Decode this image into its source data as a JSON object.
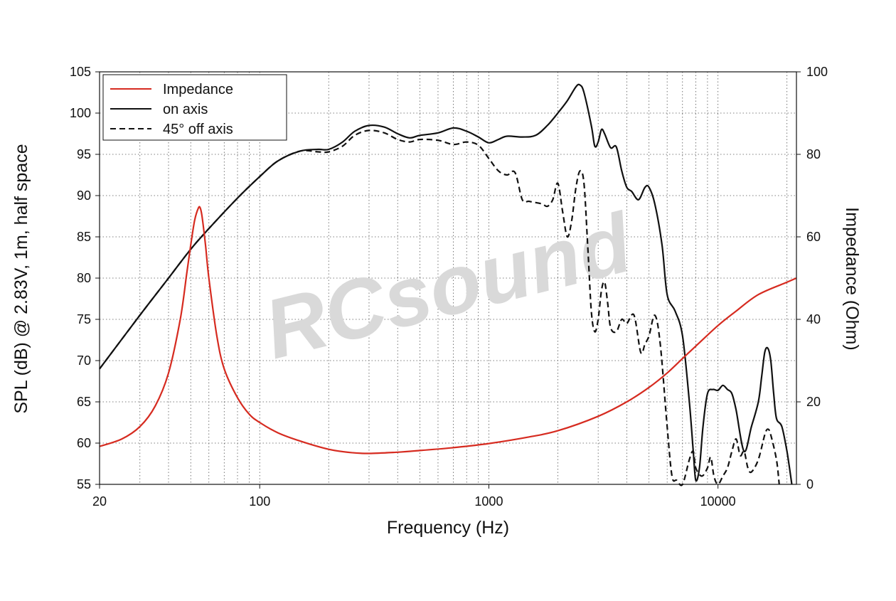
{
  "chart_data": {
    "type": "line",
    "xlabel": "Frequency (Hz)",
    "ylabel": "SPL (dB) @ 2.83V, 1m, half space",
    "y2label": "Impedance (Ohm)",
    "x_scale": "log",
    "xlim": [
      20,
      22000
    ],
    "ylim": [
      55,
      105
    ],
    "y2lim": [
      0,
      100
    ],
    "x_ticks": [
      {
        "v": 20,
        "label": "20"
      },
      {
        "v": 100,
        "label": "100"
      },
      {
        "v": 1000,
        "label": "1000"
      },
      {
        "v": 10000,
        "label": "10000"
      }
    ],
    "y_ticks": [
      "55",
      "60",
      "65",
      "70",
      "75",
      "80",
      "85",
      "90",
      "95",
      "100",
      "105"
    ],
    "y2_ticks": [
      "0",
      "20",
      "40",
      "60",
      "80",
      "100"
    ],
    "grid": true,
    "legend_position": "top-left",
    "watermark": "RCsound",
    "series": [
      {
        "name": "Impedance",
        "axis": "right",
        "color": "#d62b20",
        "dash": "solid",
        "points": [
          [
            20,
            9.2
          ],
          [
            25,
            11
          ],
          [
            30,
            14
          ],
          [
            35,
            19
          ],
          [
            40,
            27
          ],
          [
            45,
            40
          ],
          [
            48,
            51
          ],
          [
            50,
            58
          ],
          [
            52,
            64
          ],
          [
            54,
            67
          ],
          [
            55,
            67
          ],
          [
            56,
            65
          ],
          [
            58,
            58
          ],
          [
            60,
            50
          ],
          [
            65,
            36
          ],
          [
            70,
            28
          ],
          [
            80,
            21
          ],
          [
            90,
            17
          ],
          [
            100,
            15
          ],
          [
            120,
            12.5
          ],
          [
            150,
            10.5
          ],
          [
            200,
            8.5
          ],
          [
            250,
            7.7
          ],
          [
            300,
            7.5
          ],
          [
            400,
            7.8
          ],
          [
            500,
            8.2
          ],
          [
            700,
            8.9
          ],
          [
            1000,
            9.9
          ],
          [
            1500,
            11.5
          ],
          [
            2000,
            13
          ],
          [
            3000,
            16.5
          ],
          [
            4000,
            20
          ],
          [
            5000,
            23.5
          ],
          [
            6000,
            27
          ],
          [
            7000,
            30.5
          ],
          [
            8000,
            33.5
          ],
          [
            10000,
            38.5
          ],
          [
            12000,
            42
          ],
          [
            15000,
            46
          ],
          [
            20000,
            49
          ],
          [
            22000,
            50
          ]
        ]
      },
      {
        "name": "on axis",
        "axis": "left",
        "color": "#111111",
        "dash": "solid",
        "points": [
          [
            20,
            69
          ],
          [
            30,
            75.5
          ],
          [
            40,
            80
          ],
          [
            50,
            83.5
          ],
          [
            60,
            86
          ],
          [
            80,
            89.7
          ],
          [
            100,
            92.3
          ],
          [
            120,
            94.2
          ],
          [
            150,
            95.4
          ],
          [
            180,
            95.6
          ],
          [
            200,
            95.6
          ],
          [
            230,
            96.5
          ],
          [
            260,
            97.8
          ],
          [
            300,
            98.5
          ],
          [
            350,
            98.3
          ],
          [
            400,
            97.5
          ],
          [
            450,
            97
          ],
          [
            500,
            97.3
          ],
          [
            600,
            97.6
          ],
          [
            700,
            98.2
          ],
          [
            800,
            97.8
          ],
          [
            900,
            97.1
          ],
          [
            1000,
            96.4
          ],
          [
            1100,
            96.8
          ],
          [
            1200,
            97.2
          ],
          [
            1400,
            97.1
          ],
          [
            1600,
            97.3
          ],
          [
            1800,
            98.5
          ],
          [
            2000,
            100
          ],
          [
            2200,
            101.5
          ],
          [
            2400,
            103.2
          ],
          [
            2500,
            103.4
          ],
          [
            2600,
            102.5
          ],
          [
            2800,
            98.5
          ],
          [
            2900,
            96
          ],
          [
            3000,
            96.5
          ],
          [
            3100,
            98
          ],
          [
            3200,
            97.5
          ],
          [
            3400,
            95.8
          ],
          [
            3600,
            95.9
          ],
          [
            3800,
            93
          ],
          [
            4000,
            91
          ],
          [
            4200,
            90.5
          ],
          [
            4500,
            89.5
          ],
          [
            4800,
            91
          ],
          [
            5000,
            91
          ],
          [
            5300,
            89
          ],
          [
            5700,
            84
          ],
          [
            6000,
            78
          ],
          [
            6500,
            76
          ],
          [
            7000,
            73
          ],
          [
            7500,
            65
          ],
          [
            7800,
            59
          ],
          [
            8000,
            55.5
          ],
          [
            8300,
            57
          ],
          [
            8600,
            62
          ],
          [
            9000,
            66
          ],
          [
            9500,
            66.5
          ],
          [
            10000,
            66.4
          ],
          [
            10500,
            67
          ],
          [
            11000,
            66.5
          ],
          [
            11500,
            66
          ],
          [
            12000,
            64
          ],
          [
            13000,
            59
          ],
          [
            14000,
            62
          ],
          [
            15000,
            65
          ],
          [
            15500,
            68
          ],
          [
            16000,
            71
          ],
          [
            16500,
            71.5
          ],
          [
            17000,
            70
          ],
          [
            17500,
            66
          ],
          [
            18000,
            63
          ],
          [
            19000,
            62
          ],
          [
            20000,
            59
          ],
          [
            21000,
            55
          ]
        ]
      },
      {
        "name": "45° off axis",
        "axis": "left",
        "color": "#111111",
        "dash": "dashed",
        "points": [
          [
            20,
            69
          ],
          [
            30,
            75.5
          ],
          [
            40,
            80
          ],
          [
            50,
            83.5
          ],
          [
            60,
            86
          ],
          [
            80,
            89.7
          ],
          [
            100,
            92.3
          ],
          [
            120,
            94.2
          ],
          [
            150,
            95.4
          ],
          [
            180,
            95.3
          ],
          [
            200,
            95.3
          ],
          [
            230,
            96
          ],
          [
            260,
            97.3
          ],
          [
            300,
            97.9
          ],
          [
            350,
            97.6
          ],
          [
            400,
            96.8
          ],
          [
            450,
            96.5
          ],
          [
            500,
            96.8
          ],
          [
            600,
            96.7
          ],
          [
            700,
            96.2
          ],
          [
            800,
            96.5
          ],
          [
            900,
            96.1
          ],
          [
            1000,
            94.5
          ],
          [
            1100,
            93
          ],
          [
            1200,
            92.5
          ],
          [
            1300,
            92.8
          ],
          [
            1400,
            89.5
          ],
          [
            1500,
            89.3
          ],
          [
            1700,
            89
          ],
          [
            1800,
            88.7
          ],
          [
            1900,
            89.5
          ],
          [
            2000,
            91.5
          ],
          [
            2100,
            88
          ],
          [
            2200,
            85
          ],
          [
            2300,
            87
          ],
          [
            2400,
            91
          ],
          [
            2500,
            93
          ],
          [
            2600,
            91.5
          ],
          [
            2700,
            84
          ],
          [
            2800,
            76
          ],
          [
            2900,
            73.5
          ],
          [
            3000,
            75
          ],
          [
            3100,
            78.5
          ],
          [
            3200,
            79.5
          ],
          [
            3300,
            77
          ],
          [
            3400,
            74
          ],
          [
            3600,
            73.5
          ],
          [
            3800,
            75
          ],
          [
            4000,
            74.5
          ],
          [
            4300,
            75.5
          ],
          [
            4600,
            71
          ],
          [
            4800,
            72
          ],
          [
            5000,
            73
          ],
          [
            5300,
            75.5
          ],
          [
            5600,
            72
          ],
          [
            6000,
            62
          ],
          [
            6300,
            56
          ],
          [
            6600,
            55.5
          ],
          [
            7000,
            55
          ],
          [
            7500,
            58
          ],
          [
            7800,
            59
          ],
          [
            8000,
            57
          ],
          [
            8500,
            56
          ],
          [
            9000,
            57
          ],
          [
            9300,
            58.3
          ],
          [
            9600,
            56
          ],
          [
            10000,
            55
          ],
          [
            10500,
            56
          ],
          [
            11000,
            57
          ],
          [
            11500,
            59
          ],
          [
            12000,
            60.5
          ],
          [
            12500,
            58.5
          ],
          [
            13000,
            59
          ],
          [
            13500,
            57
          ],
          [
            14000,
            56.5
          ],
          [
            15000,
            58
          ],
          [
            16000,
            61
          ],
          [
            16500,
            61.7
          ],
          [
            17000,
            61
          ],
          [
            18000,
            58
          ],
          [
            18500,
            55
          ]
        ]
      }
    ]
  }
}
